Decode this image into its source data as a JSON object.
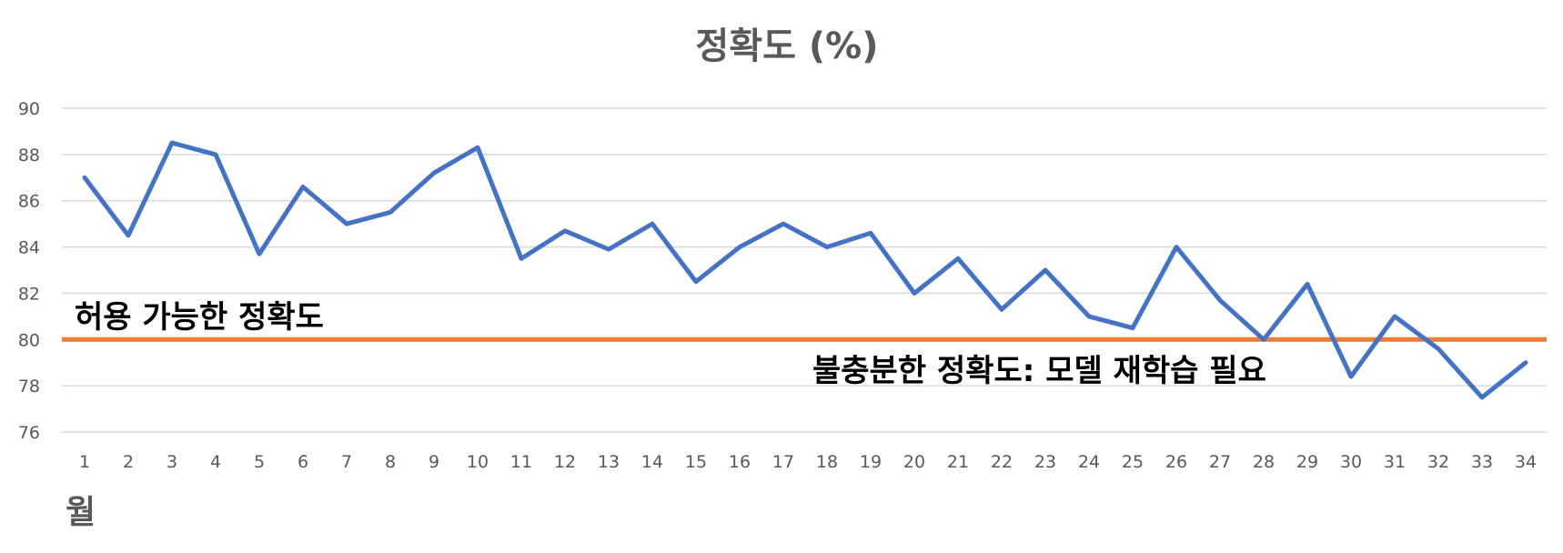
{
  "chart_data": {
    "type": "line",
    "title": "정확도 (%)",
    "xlabel": "월",
    "ylabel": "",
    "ylim": [
      76,
      90
    ],
    "yticks": [
      76,
      78,
      80,
      82,
      84,
      86,
      88,
      90
    ],
    "grid": true,
    "x": [
      1,
      2,
      3,
      4,
      5,
      6,
      7,
      8,
      9,
      10,
      11,
      12,
      13,
      14,
      15,
      16,
      17,
      18,
      19,
      20,
      21,
      22,
      23,
      24,
      25,
      26,
      27,
      28,
      29,
      30,
      31,
      32,
      33,
      34
    ],
    "series": [
      {
        "values": [
          87.0,
          84.5,
          88.5,
          88.0,
          83.7,
          86.6,
          85.0,
          85.5,
          87.2,
          88.3,
          83.5,
          84.7,
          83.9,
          85.0,
          82.5,
          84.0,
          85.0,
          84.0,
          84.6,
          82.0,
          83.5,
          81.3,
          83.0,
          81.0,
          80.5,
          84.0,
          81.7,
          80.0,
          82.4,
          78.4,
          81.0,
          79.6,
          77.5,
          79.0
        ],
        "color": "#4472c4"
      }
    ],
    "threshold": {
      "value": 80,
      "color": "#ed7d31"
    },
    "annotations": [
      {
        "text": "허용 가능한 정확도",
        "position": "above-threshold-left"
      },
      {
        "text": "불충분한 정확도: 모델 재학습 필요",
        "position": "below-threshold-right"
      }
    ]
  }
}
